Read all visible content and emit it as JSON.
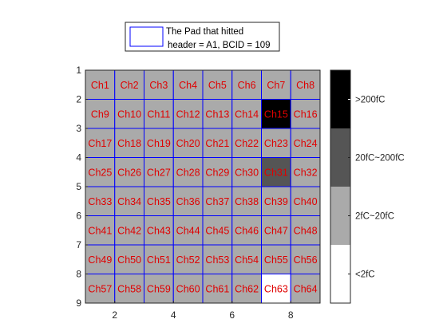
{
  "chart_data": {
    "type": "heatmap",
    "title": "",
    "xlabel": "",
    "ylabel": "",
    "xlim": [
      1,
      9
    ],
    "ylim": [
      1,
      9
    ],
    "y_reversed": true,
    "x_ticks": [
      2,
      4,
      6,
      8
    ],
    "y_ticks": [
      1,
      2,
      3,
      4,
      5,
      6,
      7,
      8,
      9
    ],
    "grid_color": "#0000ff",
    "rows": 8,
    "cols": 8,
    "channels": [
      "Ch1",
      "Ch2",
      "Ch3",
      "Ch4",
      "Ch5",
      "Ch6",
      "Ch7",
      "Ch8",
      "Ch9",
      "Ch10",
      "Ch11",
      "Ch12",
      "Ch13",
      "Ch14",
      "Ch15",
      "Ch16",
      "Ch17",
      "Ch18",
      "Ch19",
      "Ch20",
      "Ch21",
      "Ch22",
      "Ch23",
      "Ch24",
      "Ch25",
      "Ch26",
      "Ch27",
      "Ch28",
      "Ch29",
      "Ch30",
      "Ch31",
      "Ch32",
      "Ch33",
      "Ch34",
      "Ch35",
      "Ch36",
      "Ch37",
      "Ch38",
      "Ch39",
      "Ch40",
      "Ch41",
      "Ch42",
      "Ch43",
      "Ch44",
      "Ch45",
      "Ch46",
      "Ch47",
      "Ch48",
      "Ch49",
      "Ch50",
      "Ch51",
      "Ch52",
      "Ch53",
      "Ch54",
      "Ch55",
      "Ch56",
      "Ch57",
      "Ch58",
      "Ch59",
      "Ch60",
      "Ch61",
      "Ch62",
      "Ch63",
      "Ch64"
    ],
    "levels": [
      1,
      1,
      1,
      1,
      1,
      1,
      1,
      1,
      1,
      1,
      1,
      1,
      1,
      1,
      3,
      1,
      1,
      1,
      1,
      1,
      1,
      1,
      1,
      1,
      1,
      1,
      1,
      1,
      1,
      1,
      2,
      1,
      1,
      1,
      1,
      1,
      1,
      1,
      1,
      1,
      1,
      1,
      1,
      1,
      1,
      1,
      1,
      1,
      1,
      1,
      1,
      1,
      1,
      1,
      1,
      1,
      1,
      1,
      1,
      1,
      1,
      1,
      0,
      1
    ],
    "colorbar": {
      "categories": [
        ">200fC",
        "20fC~200fC",
        "2fC~20fC",
        "<2fC"
      ],
      "colors": [
        "#000000",
        "#555555",
        "#aaaaaa",
        "#ffffff"
      ]
    },
    "label_colors": {
      "default": "#e00000",
      "on_white": "#d00000"
    },
    "legend": {
      "placement": "top",
      "line1": "The Pad that hitted",
      "line2": "header = A1, BCID = 109",
      "swatch_edge": "#0000ff"
    }
  }
}
